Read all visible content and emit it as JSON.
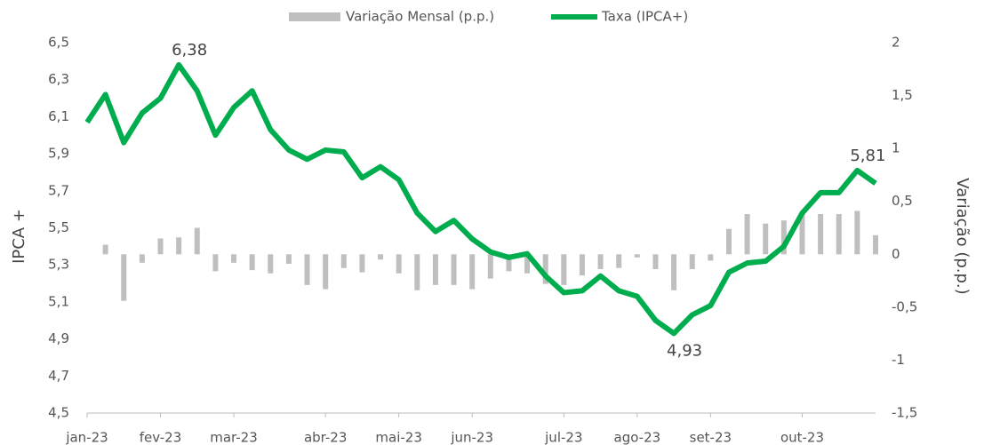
{
  "chart_data": {
    "type": "bar_line",
    "categories": [
      "jan-23",
      null,
      null,
      null,
      "fev-23",
      null,
      null,
      null,
      "mar-23",
      null,
      null,
      null,
      null,
      "abr-23",
      null,
      null,
      null,
      "mai-23",
      null,
      null,
      null,
      "jun-23",
      null,
      null,
      null,
      null,
      "jul-23",
      null,
      null,
      null,
      "ago-23",
      null,
      null,
      null,
      "set-23",
      null,
      null,
      null,
      null,
      "out-23",
      null,
      null,
      null,
      null
    ],
    "y_label": "IPCA +",
    "y2_label": "Variação (p.p.)",
    "ylim": [
      4.5,
      6.5
    ],
    "yticks": [
      {
        "value": 4.5,
        "label": "4,5"
      },
      {
        "value": 4.7,
        "label": "4,7"
      },
      {
        "value": 4.9,
        "label": "4,9"
      },
      {
        "value": 5.1,
        "label": "5,1"
      },
      {
        "value": 5.3,
        "label": "5,3"
      },
      {
        "value": 5.5,
        "label": "5,5"
      },
      {
        "value": 5.7,
        "label": "5,7"
      },
      {
        "value": 5.9,
        "label": "5,9"
      },
      {
        "value": 6.1,
        "label": "6,1"
      },
      {
        "value": 6.3,
        "label": "6,3"
      },
      {
        "value": 6.5,
        "label": "6,5"
      }
    ],
    "y2lim": [
      -1.5,
      2
    ],
    "y2ticks": [
      {
        "value": -1.5,
        "label": "-1,5"
      },
      -1,
      {
        "value": -0.5,
        "label": "-0,5"
      },
      0,
      {
        "value": 0.5,
        "label": "0,5"
      },
      1,
      {
        "value": 1.5,
        "label": "1,5"
      },
      2
    ],
    "grid": false,
    "legend": "top",
    "series": [
      {
        "name": "Variação Mensal (p.p.)",
        "type": "bar",
        "axis": "y2",
        "color": "#bfbfbf",
        "values": [
          null,
          0.09,
          -0.44,
          -0.08,
          0.15,
          0.16,
          0.25,
          -0.16,
          -0.08,
          -0.15,
          -0.18,
          -0.09,
          -0.29,
          -0.33,
          -0.13,
          -0.17,
          -0.05,
          -0.18,
          -0.34,
          -0.29,
          -0.29,
          -0.33,
          -0.23,
          -0.16,
          -0.18,
          -0.28,
          -0.29,
          -0.2,
          -0.14,
          -0.13,
          -0.03,
          -0.14,
          -0.34,
          -0.14,
          -0.06,
          0.24,
          0.38,
          0.29,
          0.32,
          0.38,
          0.38,
          0.38,
          0.41,
          0.18
        ]
      },
      {
        "name": "Taxa (IPCA+)",
        "type": "line",
        "axis": "y",
        "color": "#00ad4e",
        "values": [
          6.07,
          6.22,
          5.96,
          6.12,
          6.2,
          6.38,
          6.24,
          6.0,
          6.15,
          6.24,
          6.03,
          5.92,
          5.87,
          5.92,
          5.91,
          5.77,
          5.83,
          5.76,
          5.58,
          5.48,
          5.54,
          5.44,
          5.37,
          5.34,
          5.36,
          5.24,
          5.15,
          5.16,
          5.24,
          5.16,
          5.13,
          5.0,
          4.93,
          5.03,
          5.08,
          5.26,
          5.31,
          5.32,
          5.4,
          5.58,
          5.69,
          5.69,
          5.81,
          5.74
        ],
        "value_labels": [
          null,
          null,
          null,
          null,
          null,
          "6,38",
          null,
          null,
          null,
          null,
          null,
          null,
          null,
          null,
          null,
          null,
          null,
          null,
          null,
          null,
          null,
          null,
          null,
          null,
          null,
          null,
          null,
          null,
          null,
          null,
          null,
          null,
          "4,93",
          null,
          null,
          null,
          null,
          null,
          null,
          null,
          null,
          null,
          "5,81",
          null
        ]
      }
    ]
  }
}
